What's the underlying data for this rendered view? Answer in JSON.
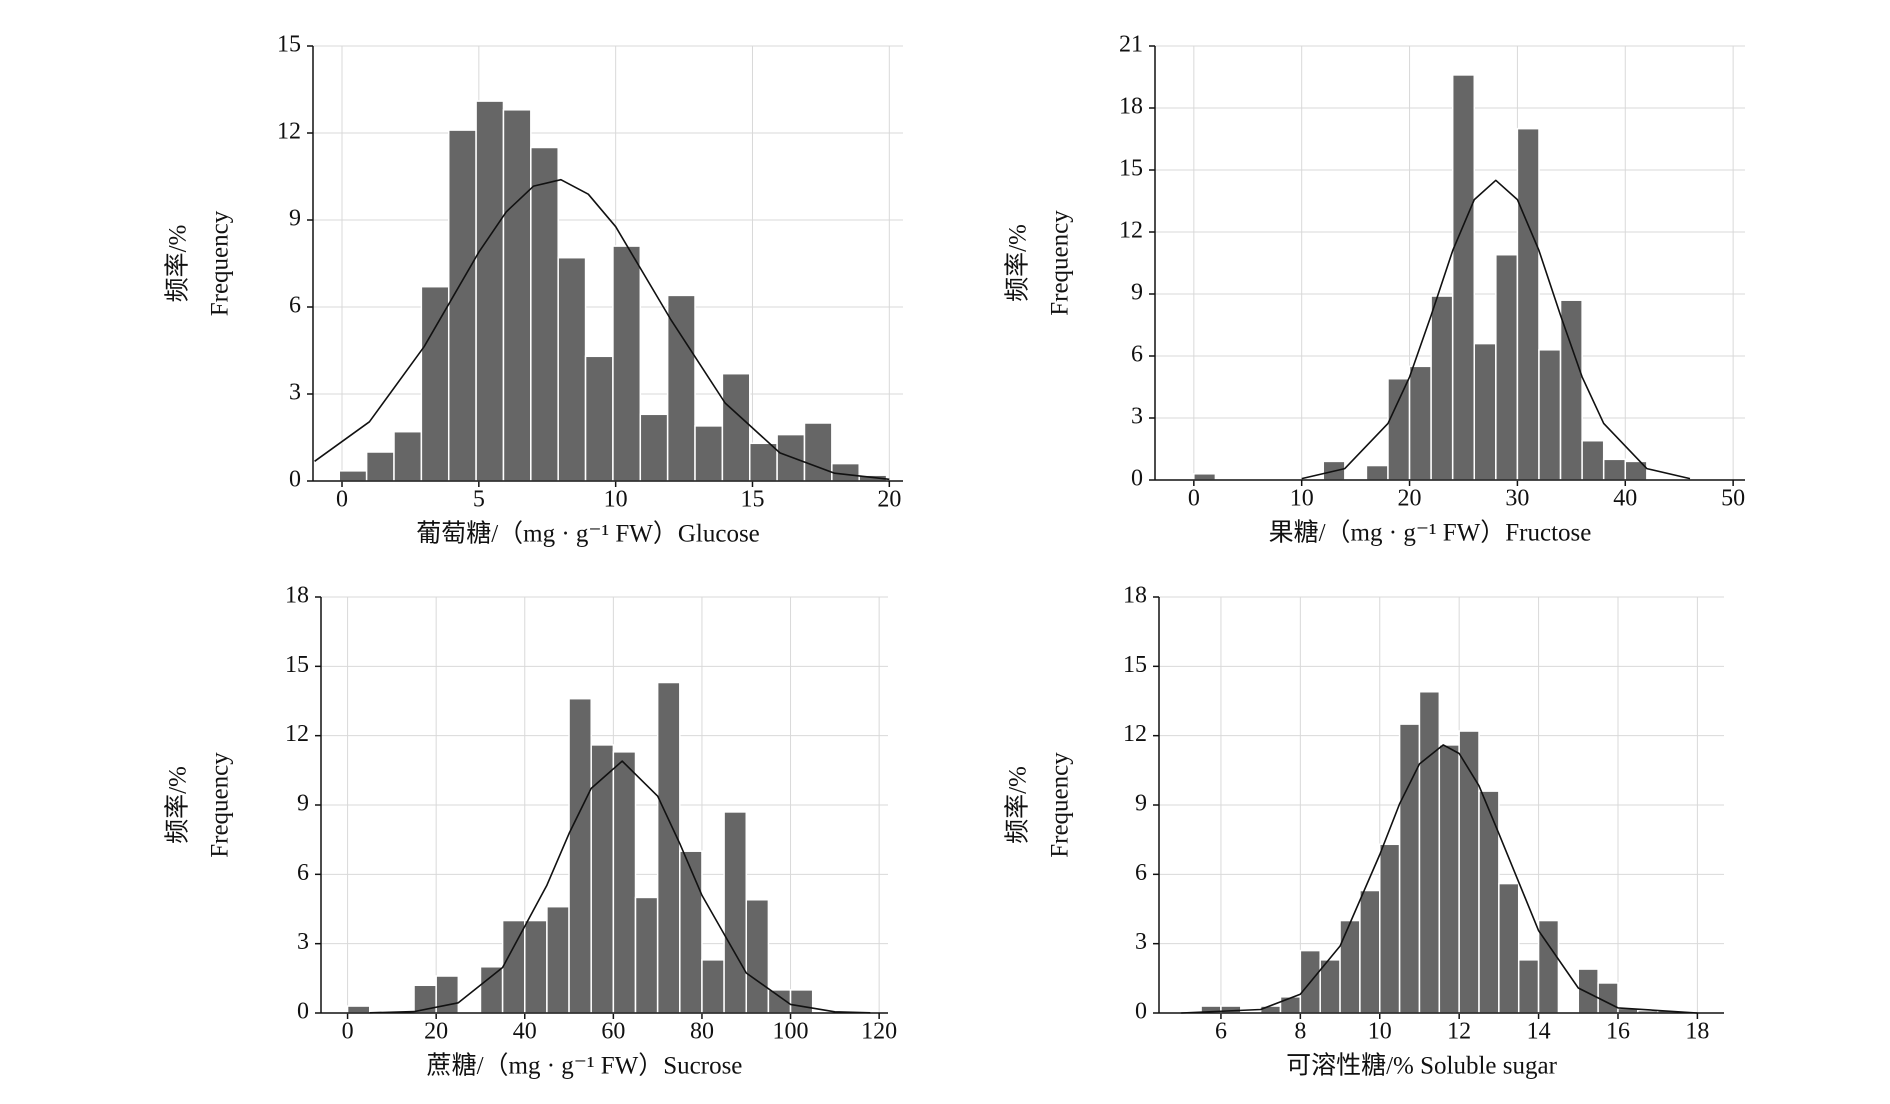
{
  "chart_data": [
    {
      "type": "histogram",
      "color": "#666666",
      "grid": true,
      "xlabel": "葡萄糖/（mg · g⁻¹ FW）Glucose",
      "ylabel": [
        "频率/%",
        "Frequency"
      ],
      "xlim": [
        -1.06,
        20.5
      ],
      "ylim": [
        0,
        15
      ],
      "xticks": [
        0,
        5,
        10,
        15,
        20
      ],
      "yticks": [
        0,
        3,
        6,
        9,
        12,
        15
      ],
      "bins": [
        -0.1,
        0.9,
        1.9,
        2.9,
        3.9,
        4.9,
        5.9,
        6.9,
        7.9,
        8.9,
        9.9,
        10.9,
        11.9,
        12.9,
        13.9,
        14.9,
        15.9,
        16.9,
        17.9,
        18.9,
        19.9
      ],
      "counts": [
        0.35,
        1.0,
        1.7,
        6.7,
        12.1,
        13.1,
        12.8,
        11.5,
        7.7,
        4.3,
        8.1,
        2.3,
        6.4,
        1.9,
        3.7,
        1.3,
        1.6,
        2.0,
        0.6,
        0.2
      ],
      "curve": {
        "x": [
          -1,
          1,
          3,
          5,
          6,
          7,
          8,
          9,
          10,
          12,
          14,
          16,
          18,
          20
        ],
        "values": [
          0.68,
          2.04,
          4.63,
          7.89,
          9.28,
          10.17,
          10.39,
          9.89,
          8.77,
          5.59,
          2.69,
          0.97,
          0.27,
          0.06
        ]
      }
    },
    {
      "type": "histogram",
      "color": "#666666",
      "grid": true,
      "xlabel": "果糖/（mg · g⁻¹ FW）Fructose",
      "ylabel": [
        "频率/%",
        "Frequency"
      ],
      "xlim": [
        -3.6,
        51.1
      ],
      "ylim": [
        0,
        21
      ],
      "xticks": [
        0,
        10,
        20,
        30,
        40,
        50
      ],
      "yticks": [
        0,
        3,
        6,
        9,
        12,
        15,
        18,
        21
      ],
      "bins": [
        0,
        2,
        4,
        6,
        8,
        10,
        12,
        14,
        16,
        18,
        20,
        22,
        24,
        26,
        28,
        30,
        32,
        34,
        36,
        38,
        40,
        42
      ],
      "counts": [
        0.3,
        0,
        0,
        0,
        0,
        0,
        0.9,
        0,
        0.7,
        4.9,
        5.5,
        8.9,
        19.6,
        6.6,
        10.9,
        17.0,
        6.3,
        8.7,
        1.9,
        1.0,
        0.9
      ],
      "curve": {
        "x": [
          10,
          14,
          18,
          20,
          22,
          24,
          26,
          28,
          30,
          32,
          34,
          36,
          38,
          42,
          46
        ],
        "values": [
          0.07,
          0.55,
          2.74,
          4.99,
          7.96,
          11.1,
          13.57,
          14.5,
          13.57,
          11.1,
          7.96,
          4.99,
          2.74,
          0.55,
          0.07
        ]
      }
    },
    {
      "type": "histogram",
      "color": "#666666",
      "grid": true,
      "xlabel": "蔗糖/（mg · g⁻¹ FW）Sucrose",
      "ylabel": [
        "频率/%",
        "Frequency"
      ],
      "xlim": [
        -6,
        122
      ],
      "ylim": [
        0,
        18
      ],
      "xticks": [
        0,
        20,
        40,
        60,
        80,
        100,
        120
      ],
      "yticks": [
        0,
        3,
        6,
        9,
        12,
        15,
        18
      ],
      "bins": [
        0,
        5,
        10,
        15,
        20,
        25,
        30,
        35,
        40,
        45,
        50,
        55,
        60,
        65,
        70,
        75,
        80,
        85,
        90,
        95,
        100,
        105
      ],
      "counts": [
        0.3,
        0,
        0,
        1.2,
        1.6,
        0,
        2.0,
        4.0,
        4.0,
        4.6,
        13.6,
        11.6,
        11.3,
        5.0,
        14.3,
        7.0,
        2.3,
        8.7,
        4.9,
        1.0,
        1.0
      ],
      "curve": {
        "x": [
          5,
          15,
          25,
          35,
          45,
          50,
          55,
          62,
          70,
          75,
          80,
          90,
          100,
          110,
          118
        ],
        "values": [
          0.01,
          0.06,
          0.44,
          1.97,
          5.53,
          7.77,
          9.72,
          10.9,
          9.38,
          7.33,
          5.09,
          1.73,
          0.37,
          0.05,
          0.01
        ]
      }
    },
    {
      "type": "histogram",
      "color": "#666666",
      "grid": true,
      "xlabel": "可溶性糖/% Soluble sugar",
      "ylabel": [
        "频率/%",
        "Frequency"
      ],
      "xlim": [
        4.44,
        18.67
      ],
      "ylim": [
        0,
        18
      ],
      "xticks": [
        6,
        8,
        10,
        12,
        14,
        16,
        18
      ],
      "yticks": [
        0,
        3,
        6,
        9,
        12,
        15,
        18
      ],
      "bins": [
        5.5,
        6,
        6.5,
        7,
        7.5,
        8,
        8.5,
        9,
        9.5,
        10,
        10.5,
        11,
        11.5,
        12,
        12.5,
        13,
        13.5,
        14,
        14.5,
        15,
        15.5,
        16,
        16.5,
        17,
        17.5
      ],
      "counts": [
        0.3,
        0.3,
        0,
        0.3,
        0.7,
        2.7,
        2.3,
        4.0,
        5.3,
        7.3,
        12.5,
        13.9,
        11.6,
        12.2,
        9.6,
        5.6,
        2.3,
        4.0,
        0,
        1.9,
        1.3,
        0.2,
        0.1,
        0.1
      ],
      "curve": {
        "x": [
          5,
          7,
          8,
          9,
          10,
          10.5,
          11,
          11.6,
          12,
          12.5,
          13,
          14,
          15,
          16,
          18
        ],
        "values": [
          0.0,
          0.15,
          0.81,
          2.9,
          6.86,
          9.05,
          10.78,
          11.6,
          11.23,
          9.83,
          7.76,
          3.56,
          1.08,
          0.22,
          0.0
        ]
      }
    }
  ]
}
